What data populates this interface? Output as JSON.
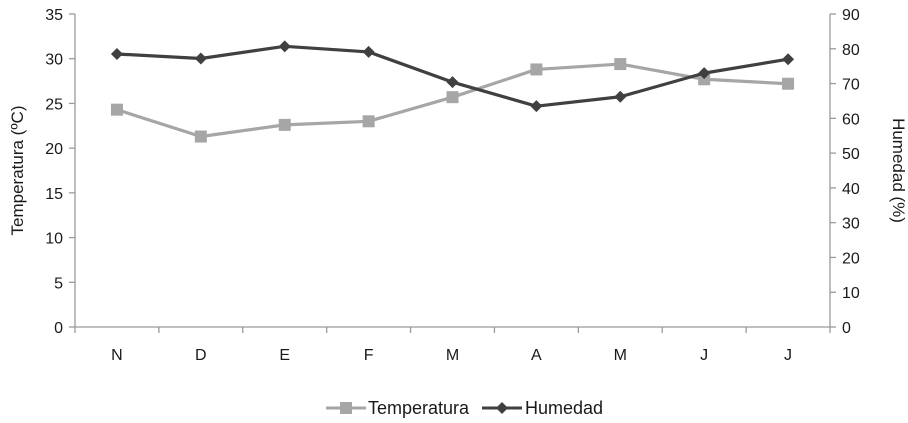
{
  "chart_data": {
    "type": "line",
    "categories": [
      "N",
      "D",
      "E",
      "F",
      "M",
      "A",
      "M",
      "J",
      "J"
    ],
    "ylabel": "Temperatura (ºC)",
    "y2label": "Humedad (%)",
    "ylim": [
      0,
      35
    ],
    "y2lim": [
      0,
      90
    ],
    "yticks": [
      "0",
      "5",
      "10",
      "15",
      "20",
      "25",
      "30",
      "35"
    ],
    "y2ticks": [
      "0",
      "10",
      "20",
      "30",
      "40",
      "50",
      "60",
      "70",
      "80",
      "90"
    ],
    "grid": false,
    "legend_position": "bottom",
    "series": [
      {
        "name": "Temperatura",
        "axis": "left",
        "color": "#a6a6a6",
        "marker": "square",
        "values": [
          24.3,
          21.3,
          22.6,
          23.0,
          25.7,
          28.8,
          29.4,
          27.7,
          27.2
        ]
      },
      {
        "name": "Humedad",
        "axis": "right",
        "color": "#404040",
        "marker": "diamond",
        "values": [
          78.5,
          77.2,
          80.7,
          79.1,
          70.4,
          63.5,
          66.2,
          73.0,
          77.0
        ]
      }
    ]
  }
}
